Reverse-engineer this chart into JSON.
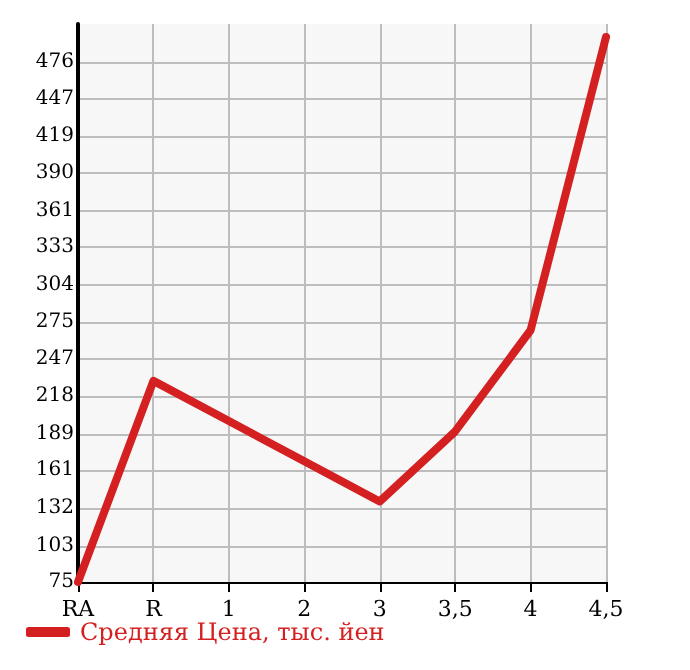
{
  "chart_data": {
    "type": "line",
    "categories": [
      "RA",
      "R",
      "1",
      "2",
      "3",
      "3,5",
      "4",
      "4,5"
    ],
    "series": [
      {
        "name": "Средняя Цена, тыс. йен",
        "color": "#d42020",
        "values": [
          75,
          230,
          199,
          168,
          137,
          191,
          269,
          495
        ]
      }
    ],
    "ylim": [
      75,
      505
    ],
    "yticks": [
      75,
      103,
      132,
      161,
      189,
      218,
      247,
      275,
      304,
      333,
      361,
      390,
      419,
      447,
      476
    ],
    "grid": true,
    "legend": "bottom left",
    "marker": "none",
    "line_style": "solid"
  }
}
